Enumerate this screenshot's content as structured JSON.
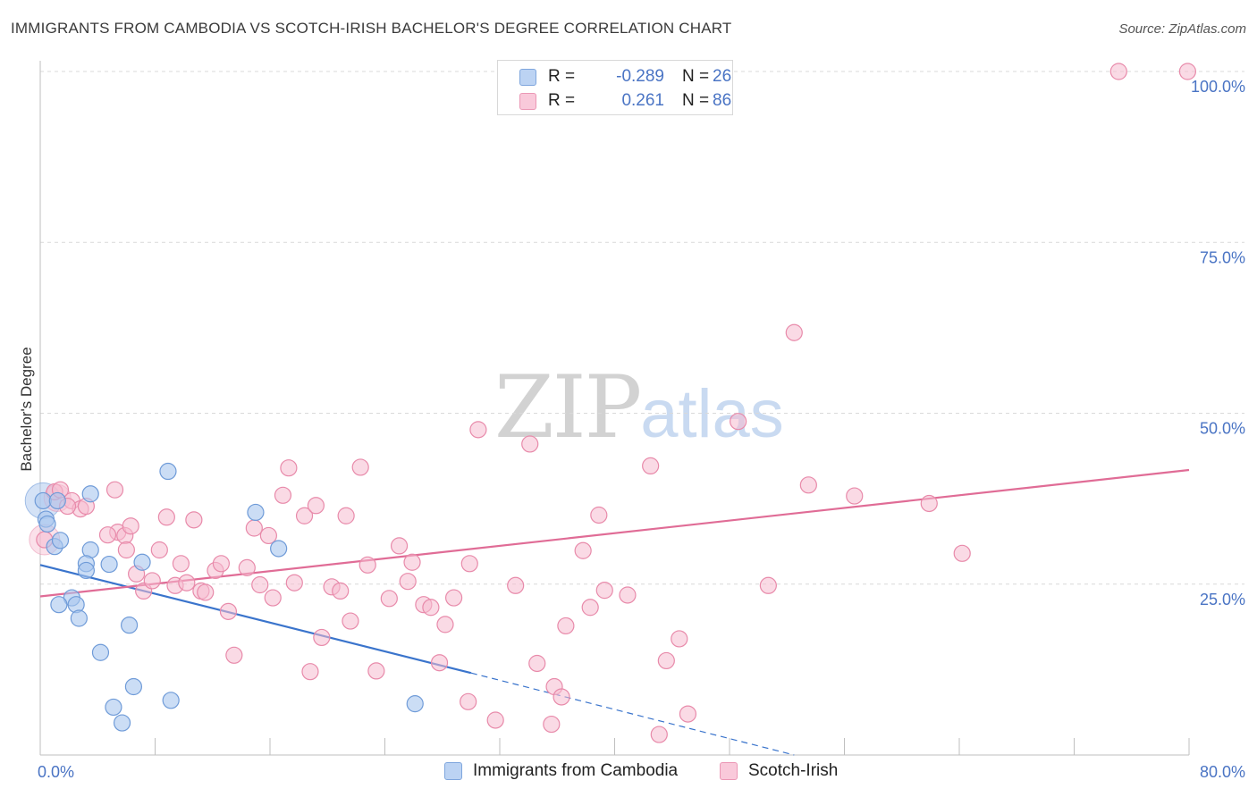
{
  "title": "IMMIGRANTS FROM CAMBODIA VS SCOTCH-IRISH BACHELOR'S DEGREE CORRELATION CHART",
  "source": "Source: ZipAtlas.com",
  "watermark": {
    "zip": "ZIP",
    "atlas": "atlas"
  },
  "colors": {
    "blue_fill": "#a9c6ee",
    "blue_stroke": "#6f9bd8",
    "blue_line": "#3a74cc",
    "pink_fill": "#f6bcd0",
    "pink_stroke": "#e88aaa",
    "pink_line": "#e06c96",
    "grid": "#d9d9d9",
    "tick_text": "#4a74c4"
  },
  "legend": {
    "rows": [
      {
        "r_label": "R =",
        "r_value": "-0.289",
        "n_label": "N =",
        "n_value": "26"
      },
      {
        "r_label": "R =",
        "r_value": "0.261",
        "n_label": "N =",
        "n_value": "86"
      }
    ]
  },
  "bottom_legend": [
    "Immigrants from Cambodia",
    "Scotch-Irish"
  ],
  "chart_data": {
    "type": "scatter",
    "title": "IMMIGRANTS FROM CAMBODIA VS SCOTCH-IRISH BACHELOR'S DEGREE CORRELATION CHART",
    "xlabel": "",
    "ylabel": "Bachelor's Degree",
    "xlim": [
      0,
      80
    ],
    "ylim": [
      0,
      100
    ],
    "x_tick_labels": [
      "0.0%",
      "80.0%"
    ],
    "y_ticks": [
      25,
      50,
      75,
      100
    ],
    "y_tick_labels": [
      "25.0%",
      "50.0%",
      "75.0%",
      "100.0%"
    ],
    "series": [
      {
        "name": "Immigrants from Cambodia",
        "color": "blue",
        "points": [
          [
            0.2,
            37.2
          ],
          [
            0.4,
            34.5
          ],
          [
            0.5,
            33.8
          ],
          [
            1.0,
            30.5
          ],
          [
            1.2,
            37.2
          ],
          [
            1.4,
            31.4
          ],
          [
            3.5,
            38.2
          ],
          [
            3.5,
            30.0
          ],
          [
            3.2,
            28.0
          ],
          [
            3.2,
            27.0
          ],
          [
            4.8,
            27.9
          ],
          [
            7.1,
            28.2
          ],
          [
            2.2,
            23.0
          ],
          [
            2.5,
            22.0
          ],
          [
            1.3,
            22.0
          ],
          [
            2.7,
            20.0
          ],
          [
            6.2,
            19.0
          ],
          [
            4.2,
            15.0
          ],
          [
            6.5,
            10.0
          ],
          [
            5.1,
            7.0
          ],
          [
            5.7,
            4.7
          ],
          [
            9.1,
            8.0
          ],
          [
            8.9,
            41.5
          ],
          [
            15.0,
            35.5
          ],
          [
            16.6,
            30.2
          ],
          [
            26.1,
            7.5
          ]
        ],
        "trend_solid": [
          [
            0,
            27.8
          ],
          [
            30,
            12.0
          ]
        ],
        "trend_dashed": [
          [
            30,
            12.0
          ],
          [
            52.5,
            0.0
          ]
        ]
      },
      {
        "name": "Scotch-Irish",
        "color": "pink",
        "points": [
          [
            0.3,
            31.5
          ],
          [
            1.0,
            38.5
          ],
          [
            1.4,
            38.8
          ],
          [
            2.2,
            37.2
          ],
          [
            2.8,
            36.0
          ],
          [
            3.2,
            36.4
          ],
          [
            5.2,
            38.8
          ],
          [
            5.4,
            32.6
          ],
          [
            5.9,
            32.1
          ],
          [
            6.0,
            30.0
          ],
          [
            6.3,
            33.5
          ],
          [
            6.7,
            26.5
          ],
          [
            7.2,
            24.0
          ],
          [
            7.8,
            25.5
          ],
          [
            8.3,
            30.0
          ],
          [
            8.8,
            34.8
          ],
          [
            9.4,
            24.8
          ],
          [
            9.8,
            28.0
          ],
          [
            10.2,
            25.2
          ],
          [
            10.7,
            34.4
          ],
          [
            11.2,
            24.0
          ],
          [
            11.5,
            23.8
          ],
          [
            12.2,
            27.0
          ],
          [
            12.6,
            28.0
          ],
          [
            13.1,
            21.0
          ],
          [
            13.5,
            14.6
          ],
          [
            14.4,
            27.4
          ],
          [
            14.9,
            33.2
          ],
          [
            15.3,
            24.9
          ],
          [
            15.9,
            32.1
          ],
          [
            16.2,
            23.0
          ],
          [
            16.9,
            38.0
          ],
          [
            17.3,
            42.0
          ],
          [
            17.7,
            25.2
          ],
          [
            18.4,
            35.0
          ],
          [
            18.8,
            12.2
          ],
          [
            19.2,
            36.5
          ],
          [
            19.6,
            17.2
          ],
          [
            20.3,
            24.6
          ],
          [
            20.9,
            24.0
          ],
          [
            21.3,
            35.0
          ],
          [
            21.6,
            19.6
          ],
          [
            22.3,
            42.1
          ],
          [
            22.8,
            27.8
          ],
          [
            23.4,
            12.3
          ],
          [
            24.3,
            22.9
          ],
          [
            25.0,
            30.6
          ],
          [
            25.6,
            25.4
          ],
          [
            25.9,
            28.2
          ],
          [
            26.7,
            22.0
          ],
          [
            27.2,
            21.6
          ],
          [
            27.8,
            13.5
          ],
          [
            28.2,
            19.1
          ],
          [
            28.8,
            23.0
          ],
          [
            29.8,
            7.8
          ],
          [
            29.9,
            28.0
          ],
          [
            30.5,
            47.6
          ],
          [
            31.7,
            5.1
          ],
          [
            33.1,
            24.8
          ],
          [
            34.1,
            45.5
          ],
          [
            34.6,
            13.4
          ],
          [
            35.6,
            4.5
          ],
          [
            35.8,
            10.0
          ],
          [
            36.3,
            8.5
          ],
          [
            36.6,
            18.9
          ],
          [
            37.8,
            29.9
          ],
          [
            38.3,
            21.6
          ],
          [
            38.9,
            35.1
          ],
          [
            39.3,
            24.1
          ],
          [
            40.9,
            23.4
          ],
          [
            42.5,
            42.3
          ],
          [
            43.1,
            3.0
          ],
          [
            43.6,
            13.8
          ],
          [
            44.5,
            17.0
          ],
          [
            45.1,
            6.0
          ],
          [
            48.6,
            48.8
          ],
          [
            50.7,
            24.8
          ],
          [
            52.5,
            61.8
          ],
          [
            53.5,
            39.5
          ],
          [
            56.7,
            37.9
          ],
          [
            61.9,
            36.8
          ],
          [
            64.2,
            29.5
          ],
          [
            75.1,
            100.0
          ],
          [
            79.9,
            100.0
          ],
          [
            1.9,
            36.4
          ],
          [
            4.7,
            32.2
          ]
        ],
        "trend_solid": [
          [
            0,
            23.2
          ],
          [
            80,
            41.7
          ]
        ]
      }
    ],
    "legend": {
      "placement": "top-center",
      "stats": [
        {
          "R": -0.289,
          "N": 26
        },
        {
          "R": 0.261,
          "N": 86
        }
      ]
    }
  }
}
